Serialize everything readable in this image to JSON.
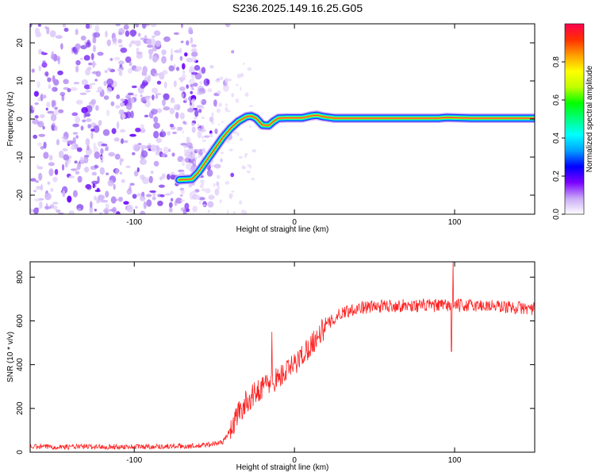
{
  "title": "S236.2025.149.16.25.G05",
  "chart_data": [
    {
      "type": "heatmap",
      "xlabel": "Height of straight line (km)",
      "ylabel": "Frequency (Hz)",
      "xlim": [
        -165,
        150
      ],
      "ylim": [
        -25,
        25
      ],
      "xticks": [
        -100,
        0,
        100
      ],
      "yticks": [
        -20,
        -10,
        0,
        10,
        20
      ],
      "colorbar": {
        "label": "Normalized spectral amplitude",
        "range": [
          0,
          1
        ],
        "ticks": [
          0.0,
          0.2,
          0.4,
          0.6,
          0.8
        ],
        "colors": [
          "#ffffff",
          "#c9a9f6",
          "#7b00ff",
          "#0000ff",
          "#00a0ff",
          "#00ffff",
          "#00ff80",
          "#00ff00",
          "#c0ff00",
          "#ffff00",
          "#ffa000",
          "#ff3000",
          "#ff0050"
        ]
      },
      "ridge": {
        "x": [
          -72,
          -64,
          -60,
          -55,
          -50,
          -45,
          -40,
          -35,
          -30,
          -27,
          -24,
          -20,
          -16,
          -13,
          -10,
          -5,
          0,
          5,
          10,
          14,
          18,
          25,
          40,
          70,
          90,
          95,
          110,
          150
        ],
        "y": [
          -16,
          -15.8,
          -14,
          -11,
          -8,
          -5,
          -2.5,
          -0.6,
          0.6,
          0.8,
          0.2,
          -1.6,
          -1.7,
          -0.6,
          0.2,
          0.3,
          0.3,
          0.3,
          0.8,
          1.0,
          0.6,
          0.2,
          0.2,
          0.2,
          0.2,
          0.4,
          0.2,
          0.2
        ]
      }
    },
    {
      "type": "line",
      "xlabel": "Height of straight line (km)",
      "ylabel": "SNR (10 * v/v)",
      "xlim": [
        -165,
        150
      ],
      "ylim": [
        0,
        870
      ],
      "xticks": [
        -100,
        0,
        100
      ],
      "yticks": [
        0,
        200,
        400,
        600,
        800
      ],
      "color": "#ff2020",
      "trend": {
        "x": [
          -165,
          -100,
          -60,
          -45,
          -40,
          -35,
          -30,
          -20,
          -10,
          0,
          10,
          20,
          30,
          40,
          60,
          80,
          100,
          120,
          150
        ],
        "y": [
          25,
          25,
          28,
          45,
          100,
          180,
          230,
          300,
          340,
          400,
          490,
          580,
          640,
          660,
          670,
          670,
          670,
          670,
          655
        ]
      },
      "spikes": [
        {
          "x": -14,
          "y": 550
        },
        {
          "x": 99,
          "y": 870
        },
        {
          "x": 98,
          "y": 460
        }
      ]
    }
  ]
}
